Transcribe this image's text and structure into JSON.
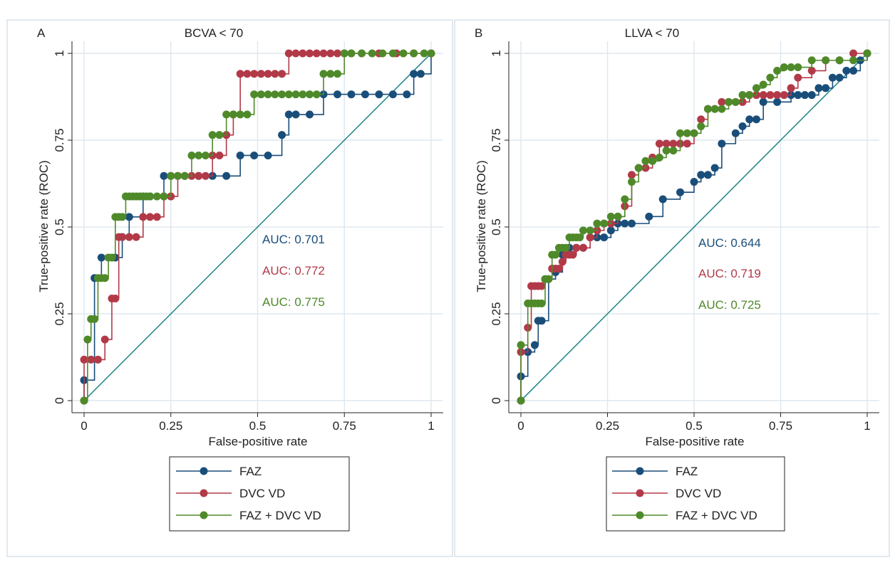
{
  "colors": {
    "faz": "#1a4e7a",
    "dvc": "#b23a48",
    "combo": "#4f8a2a",
    "diagonal": "#2a8a8a",
    "grid": "#dde8ef",
    "panel_border": "#d8e2ea",
    "text": "#222222"
  },
  "chart_data": [
    {
      "type": "line",
      "panel_label": "A",
      "title": "BCVA < 70",
      "xlabel": "False-positive rate",
      "ylabel": "True-positive rate (ROC)",
      "xlim": [
        0,
        1
      ],
      "ylim": [
        0,
        1
      ],
      "xticks": [
        0,
        0.25,
        0.5,
        0.75,
        1
      ],
      "xticklabels": [
        "0",
        "0.25",
        "0.5",
        "0.75",
        "1"
      ],
      "yticks": [
        0,
        0.25,
        0.5,
        0.75,
        1
      ],
      "yticklabels": [
        "0",
        "0.25",
        "0.5",
        "0.75",
        "1"
      ],
      "grid": true,
      "legend_position": "bottom",
      "series": [
        {
          "name": "FAZ",
          "color_key": "faz",
          "x": [
            0,
            0,
            0.03,
            0.05,
            0.09,
            0.11,
            0.13,
            0.17,
            0.19,
            0.23,
            0.25,
            0.29,
            0.33,
            0.37,
            0.41,
            0.45,
            0.49,
            0.53,
            0.57,
            0.59,
            0.61,
            0.65,
            0.69,
            0.73,
            0.77,
            0.81,
            0.85,
            0.89,
            0.93,
            0.95,
            0.97,
            1
          ],
          "y": [
            0,
            0.059,
            0.353,
            0.412,
            0.412,
            0.471,
            0.529,
            0.588,
            0.588,
            0.647,
            0.647,
            0.647,
            0.647,
            0.647,
            0.647,
            0.706,
            0.706,
            0.706,
            0.765,
            0.824,
            0.824,
            0.824,
            0.882,
            0.882,
            0.882,
            0.882,
            0.882,
            0.882,
            0.882,
            0.941,
            0.941,
            1
          ]
        },
        {
          "name": "DVC VD",
          "color_key": "dvc",
          "x": [
            0,
            0,
            0.02,
            0.04,
            0.06,
            0.08,
            0.09,
            0.1,
            0.11,
            0.13,
            0.15,
            0.17,
            0.19,
            0.21,
            0.23,
            0.25,
            0.27,
            0.29,
            0.31,
            0.33,
            0.35,
            0.37,
            0.39,
            0.41,
            0.43,
            0.45,
            0.47,
            0.49,
            0.51,
            0.53,
            0.55,
            0.57,
            0.59,
            0.61,
            0.63,
            0.65,
            0.67,
            0.69,
            0.71,
            0.73,
            0.75,
            0.77,
            0.8,
            0.85,
            0.9,
            0.95,
            1
          ],
          "y": [
            0,
            0.118,
            0.118,
            0.118,
            0.176,
            0.294,
            0.294,
            0.471,
            0.471,
            0.471,
            0.471,
            0.529,
            0.529,
            0.529,
            0.588,
            0.588,
            0.647,
            0.647,
            0.647,
            0.647,
            0.647,
            0.706,
            0.706,
            0.765,
            0.824,
            0.941,
            0.941,
            0.941,
            0.941,
            0.941,
            0.941,
            0.941,
            1,
            1,
            1,
            1,
            1,
            1,
            1,
            1,
            1,
            1,
            1,
            1,
            1,
            1,
            1
          ]
        },
        {
          "name": "FAZ + DVC VD",
          "color_key": "combo",
          "x": [
            0,
            0.01,
            0.02,
            0.03,
            0.04,
            0.05,
            0.06,
            0.07,
            0.08,
            0.09,
            0.1,
            0.11,
            0.12,
            0.13,
            0.14,
            0.15,
            0.16,
            0.17,
            0.18,
            0.19,
            0.21,
            0.23,
            0.25,
            0.27,
            0.29,
            0.31,
            0.33,
            0.35,
            0.37,
            0.39,
            0.41,
            0.43,
            0.45,
            0.47,
            0.49,
            0.51,
            0.53,
            0.55,
            0.57,
            0.59,
            0.61,
            0.63,
            0.65,
            0.67,
            0.69,
            0.71,
            0.73,
            0.75,
            0.77,
            0.8,
            0.83,
            0.86,
            0.89,
            0.92,
            0.95,
            0.98,
            1
          ],
          "y": [
            0,
            0.176,
            0.235,
            0.235,
            0.353,
            0.353,
            0.353,
            0.412,
            0.412,
            0.529,
            0.529,
            0.529,
            0.588,
            0.588,
            0.588,
            0.588,
            0.588,
            0.588,
            0.588,
            0.588,
            0.588,
            0.588,
            0.647,
            0.647,
            0.647,
            0.706,
            0.706,
            0.706,
            0.765,
            0.765,
            0.824,
            0.824,
            0.824,
            0.824,
            0.882,
            0.882,
            0.882,
            0.882,
            0.882,
            0.882,
            0.882,
            0.882,
            0.882,
            0.882,
            0.941,
            0.941,
            0.941,
            1,
            1,
            1,
            1,
            1,
            1,
            1,
            1,
            1,
            1
          ]
        }
      ],
      "annotations": [
        {
          "text": "AUC: 0.701",
          "color_key": "faz"
        },
        {
          "text": "AUC: 0.772",
          "color_key": "dvc"
        },
        {
          "text": "AUC: 0.775",
          "color_key": "combo"
        }
      ]
    },
    {
      "type": "line",
      "panel_label": "B",
      "title": "LLVA < 70",
      "xlabel": "False-positive rate",
      "ylabel": "True-positive rate (ROC)",
      "xlim": [
        0,
        1
      ],
      "ylim": [
        0,
        1
      ],
      "xticks": [
        0,
        0.25,
        0.5,
        0.75,
        1
      ],
      "xticklabels": [
        "0",
        "0.25",
        "0.5",
        "0.75",
        "1"
      ],
      "yticks": [
        0,
        0.25,
        0.5,
        0.75,
        1
      ],
      "yticklabels": [
        "0",
        "0.25",
        "0.5",
        "0.75",
        "1"
      ],
      "grid": true,
      "legend_position": "bottom",
      "series": [
        {
          "name": "FAZ",
          "color_key": "faz",
          "x": [
            0,
            0,
            0.02,
            0.04,
            0.05,
            0.06,
            0.08,
            0.1,
            0.12,
            0.14,
            0.16,
            0.18,
            0.2,
            0.22,
            0.24,
            0.26,
            0.28,
            0.3,
            0.32,
            0.37,
            0.41,
            0.46,
            0.5,
            0.52,
            0.54,
            0.56,
            0.58,
            0.62,
            0.64,
            0.66,
            0.68,
            0.7,
            0.74,
            0.78,
            0.8,
            0.82,
            0.84,
            0.86,
            0.88,
            0.9,
            0.92,
            0.94,
            0.96,
            0.98,
            1
          ],
          "y": [
            0,
            0.07,
            0.14,
            0.16,
            0.23,
            0.23,
            0.35,
            0.37,
            0.42,
            0.44,
            0.44,
            0.44,
            0.47,
            0.47,
            0.47,
            0.49,
            0.51,
            0.51,
            0.51,
            0.53,
            0.58,
            0.6,
            0.63,
            0.65,
            0.65,
            0.67,
            0.74,
            0.77,
            0.79,
            0.81,
            0.81,
            0.86,
            0.86,
            0.88,
            0.88,
            0.88,
            0.88,
            0.9,
            0.9,
            0.93,
            0.93,
            0.95,
            0.95,
            0.98,
            1
          ]
        },
        {
          "name": "DVC VD",
          "color_key": "dvc",
          "x": [
            0,
            0,
            0.02,
            0.03,
            0.04,
            0.05,
            0.06,
            0.07,
            0.09,
            0.1,
            0.11,
            0.12,
            0.13,
            0.14,
            0.15,
            0.16,
            0.18,
            0.2,
            0.22,
            0.24,
            0.26,
            0.28,
            0.3,
            0.32,
            0.34,
            0.36,
            0.38,
            0.4,
            0.42,
            0.44,
            0.46,
            0.48,
            0.5,
            0.52,
            0.54,
            0.56,
            0.58,
            0.6,
            0.62,
            0.64,
            0.66,
            0.68,
            0.7,
            0.72,
            0.74,
            0.76,
            0.78,
            0.8,
            0.84,
            0.88,
            0.92,
            0.96,
            1
          ],
          "y": [
            0,
            0.14,
            0.21,
            0.33,
            0.33,
            0.33,
            0.33,
            0.35,
            0.38,
            0.38,
            0.38,
            0.4,
            0.42,
            0.42,
            0.42,
            0.44,
            0.44,
            0.47,
            0.49,
            0.51,
            0.51,
            0.53,
            0.56,
            0.65,
            0.67,
            0.67,
            0.7,
            0.74,
            0.74,
            0.74,
            0.74,
            0.74,
            0.77,
            0.81,
            0.84,
            0.84,
            0.86,
            0.86,
            0.86,
            0.86,
            0.88,
            0.88,
            0.88,
            0.88,
            0.88,
            0.88,
            0.9,
            0.93,
            0.95,
            0.98,
            0.98,
            1,
            1
          ]
        },
        {
          "name": "FAZ + DVC VD",
          "color_key": "combo",
          "x": [
            0,
            0,
            0.02,
            0.03,
            0.04,
            0.05,
            0.06,
            0.07,
            0.08,
            0.09,
            0.1,
            0.11,
            0.12,
            0.13,
            0.14,
            0.15,
            0.16,
            0.17,
            0.18,
            0.2,
            0.22,
            0.24,
            0.26,
            0.28,
            0.3,
            0.32,
            0.34,
            0.36,
            0.38,
            0.4,
            0.42,
            0.44,
            0.46,
            0.48,
            0.5,
            0.52,
            0.54,
            0.56,
            0.58,
            0.6,
            0.62,
            0.64,
            0.66,
            0.68,
            0.7,
            0.72,
            0.74,
            0.76,
            0.78,
            0.8,
            0.84,
            0.88,
            0.92,
            0.96,
            1
          ],
          "y": [
            0,
            0.16,
            0.28,
            0.28,
            0.28,
            0.28,
            0.28,
            0.35,
            0.35,
            0.42,
            0.42,
            0.44,
            0.44,
            0.44,
            0.47,
            0.47,
            0.47,
            0.47,
            0.49,
            0.49,
            0.51,
            0.51,
            0.53,
            0.53,
            0.58,
            0.63,
            0.67,
            0.69,
            0.69,
            0.7,
            0.72,
            0.72,
            0.77,
            0.77,
            0.77,
            0.79,
            0.84,
            0.84,
            0.84,
            0.86,
            0.86,
            0.88,
            0.88,
            0.9,
            0.91,
            0.93,
            0.95,
            0.96,
            0.96,
            0.96,
            0.98,
            0.98,
            0.98,
            0.98,
            1
          ]
        }
      ],
      "annotations": [
        {
          "text": "AUC: 0.644",
          "color_key": "faz"
        },
        {
          "text": "AUC: 0.719",
          "color_key": "dvc"
        },
        {
          "text": "AUC: 0.725",
          "color_key": "combo"
        }
      ]
    }
  ]
}
